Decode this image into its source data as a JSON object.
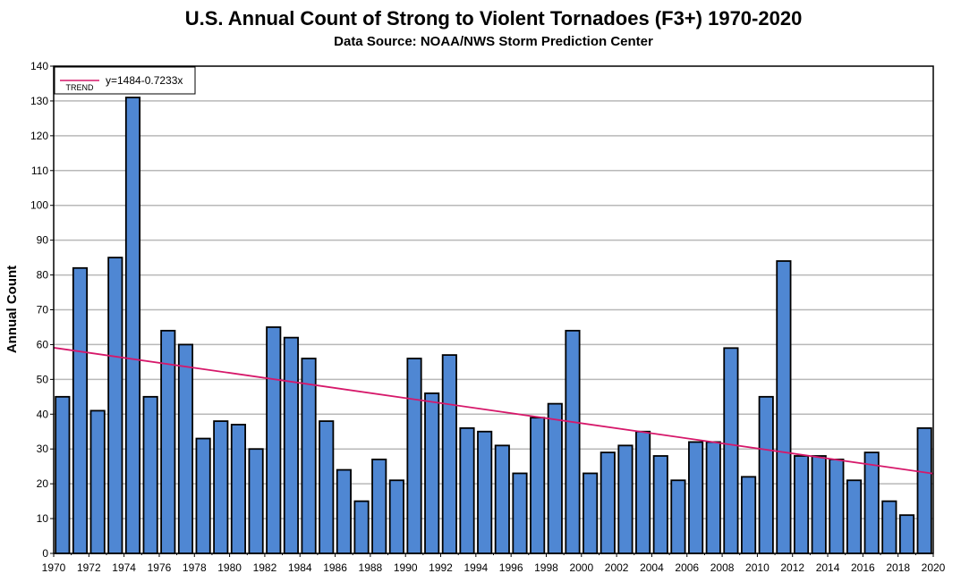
{
  "chart_data": {
    "type": "bar",
    "title": "U.S. Annual Count of Strong to Violent Tornadoes (F3+) 1970-2020",
    "subtitle": "Data Source: NOAA/NWS Storm Prediction Center",
    "ylabel": "Annual Count",
    "xlabel": "",
    "ylim": [
      0,
      140
    ],
    "xlim": [
      1970,
      2020
    ],
    "y_ticks": [
      "0",
      "10",
      "20",
      "30",
      "40",
      "50",
      "60",
      "70",
      "80",
      "90",
      "100",
      "110",
      "120",
      "130",
      "140"
    ],
    "x_ticks": [
      "1970",
      "1972",
      "1974",
      "1976",
      "1978",
      "1980",
      "1982",
      "1984",
      "1986",
      "1988",
      "1990",
      "1992",
      "1994",
      "1996",
      "1998",
      "2000",
      "2002",
      "2004",
      "2006",
      "2008",
      "2010",
      "2012",
      "2014",
      "2016",
      "2018",
      "2020"
    ],
    "grid": true,
    "bar_color": "#4f87d3",
    "bar_edge_color": "#000000",
    "trend_color": "#d6186a",
    "categories": [
      1970,
      1971,
      1972,
      1973,
      1974,
      1975,
      1976,
      1977,
      1978,
      1979,
      1980,
      1981,
      1982,
      1983,
      1984,
      1985,
      1986,
      1987,
      1988,
      1989,
      1990,
      1991,
      1992,
      1993,
      1994,
      1995,
      1996,
      1997,
      1998,
      1999,
      2000,
      2001,
      2002,
      2003,
      2004,
      2005,
      2006,
      2007,
      2008,
      2009,
      2010,
      2011,
      2012,
      2013,
      2014,
      2015,
      2016,
      2017,
      2018,
      2019
    ],
    "values": [
      45,
      82,
      41,
      85,
      131,
      45,
      64,
      60,
      33,
      38,
      37,
      30,
      65,
      62,
      56,
      38,
      24,
      15,
      27,
      21,
      56,
      46,
      57,
      36,
      35,
      31,
      23,
      39,
      43,
      64,
      23,
      29,
      31,
      35,
      28,
      21,
      32,
      32,
      59,
      22,
      45,
      84,
      28,
      28,
      27,
      21,
      29,
      15,
      11,
      36
    ],
    "trend": {
      "legend_label": "TREND",
      "equation": "y=1484-0.7233x",
      "intercept": 1484,
      "slope": -0.7233
    }
  }
}
